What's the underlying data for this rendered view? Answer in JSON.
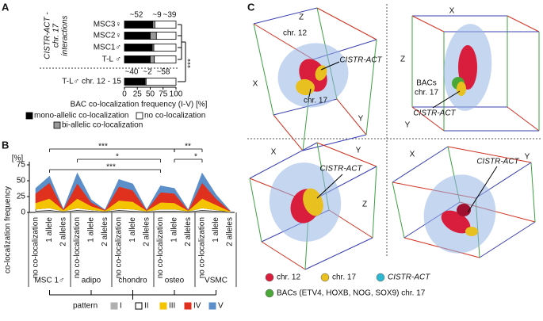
{
  "panel_labels": [
    "A",
    "B",
    "C"
  ],
  "chart_data": [
    {
      "type": "hbar",
      "y_label": [
        "CISTR-ACT -",
        "chr. 17",
        "interactions"
      ],
      "categories": [
        "MSC3♀",
        "MSC2♀",
        "MSC1♂",
        "T-L ♂",
        "T-L♂ chr. 12 - 15"
      ],
      "series": [
        {
          "name": "mono-allelic co-localization",
          "color": "#000000",
          "values": [
            55,
            50,
            54,
            50,
            40
          ]
        },
        {
          "name": "bi-allelic co-localization",
          "color": "#999999",
          "values": [
            4,
            12,
            3,
            8,
            2
          ]
        },
        {
          "name": "no co-localization",
          "color": "#ffffff",
          "values": [
            41,
            38,
            43,
            42,
            58
          ]
        }
      ],
      "xlim": [
        0,
        100
      ],
      "xticks": [
        0,
        25,
        50,
        75,
        100
      ],
      "x_label": "BAC co-localization frequency (I-V) [%]",
      "annotations": [
        "~52",
        "~9",
        "~39",
        "~40",
        "~2",
        "~58"
      ],
      "significance": "***"
    },
    {
      "type": "stacked-area",
      "y_label": "co-localization frequency",
      "y_unit": "[%]",
      "categories": [
        "no co-localization",
        "1 allele",
        "2 alleles",
        "no co-localization",
        "1 allele",
        "2 alleles",
        "no co-localization",
        "1 allele",
        "2 alleles",
        "no co-localization",
        "1 allele",
        "2 alleles",
        "no co-localization",
        "1 allele",
        "2 alleles"
      ],
      "groups": [
        "MSC 1♂",
        "adipo",
        "chondro",
        "osteo",
        "VSMC"
      ],
      "legend_title": "pattern",
      "series": [
        {
          "name": "I",
          "color": "#b0b0b0",
          "values": [
            2,
            3,
            1,
            3,
            2,
            1,
            3,
            2,
            1,
            2,
            2,
            1,
            3,
            2,
            1
          ]
        },
        {
          "name": "II",
          "color": "#ffffff",
          "values": [
            3,
            4,
            1,
            4,
            2,
            1,
            3,
            3,
            1,
            3,
            3,
            1,
            4,
            2,
            0
          ]
        },
        {
          "name": "III",
          "color": "#f5c400",
          "values": [
            10,
            15,
            2,
            15,
            6,
            1,
            13,
            12,
            1,
            11,
            10,
            1,
            15,
            8,
            1
          ]
        },
        {
          "name": "IV",
          "color": "#e0301e",
          "values": [
            15,
            25,
            1,
            24,
            6,
            1,
            22,
            18,
            1,
            16,
            15,
            1,
            25,
            10,
            1
          ]
        },
        {
          "name": "V",
          "color": "#5b8fc9",
          "values": [
            8,
            10,
            0,
            16,
            4,
            0,
            11,
            10,
            0,
            10,
            8,
            0,
            15,
            6,
            0
          ]
        }
      ],
      "ylim": [
        0,
        75
      ],
      "yticks": [
        0,
        25,
        50,
        75
      ],
      "significance": [
        "***",
        "**",
        "*",
        "*",
        "***"
      ]
    }
  ],
  "panel_c": {
    "views": [
      {
        "labels": [
          "Z",
          "X",
          "Y",
          "chr. 12",
          "CISTR-ACT",
          "chr. 17"
        ]
      },
      {
        "labels": [
          "X",
          "Z",
          "Y",
          "BACs",
          "chr. 17",
          "CISTR-ACT"
        ]
      },
      {
        "labels": [
          "X",
          "Y",
          "Z",
          "CISTR-ACT"
        ]
      },
      {
        "labels": [
          "X",
          "Y",
          "CISTR-ACT"
        ]
      }
    ],
    "legend": [
      {
        "label": "chr. 12",
        "color": "#d81e3c"
      },
      {
        "label": "chr. 17",
        "color": "#e8c020"
      },
      {
        "label": "CISTR-ACT",
        "color": "#30b8d0"
      },
      {
        "label": "BACs (ETV4, HOXB, NOG, SOX9) chr. 17",
        "color": "#4aa838"
      }
    ]
  }
}
